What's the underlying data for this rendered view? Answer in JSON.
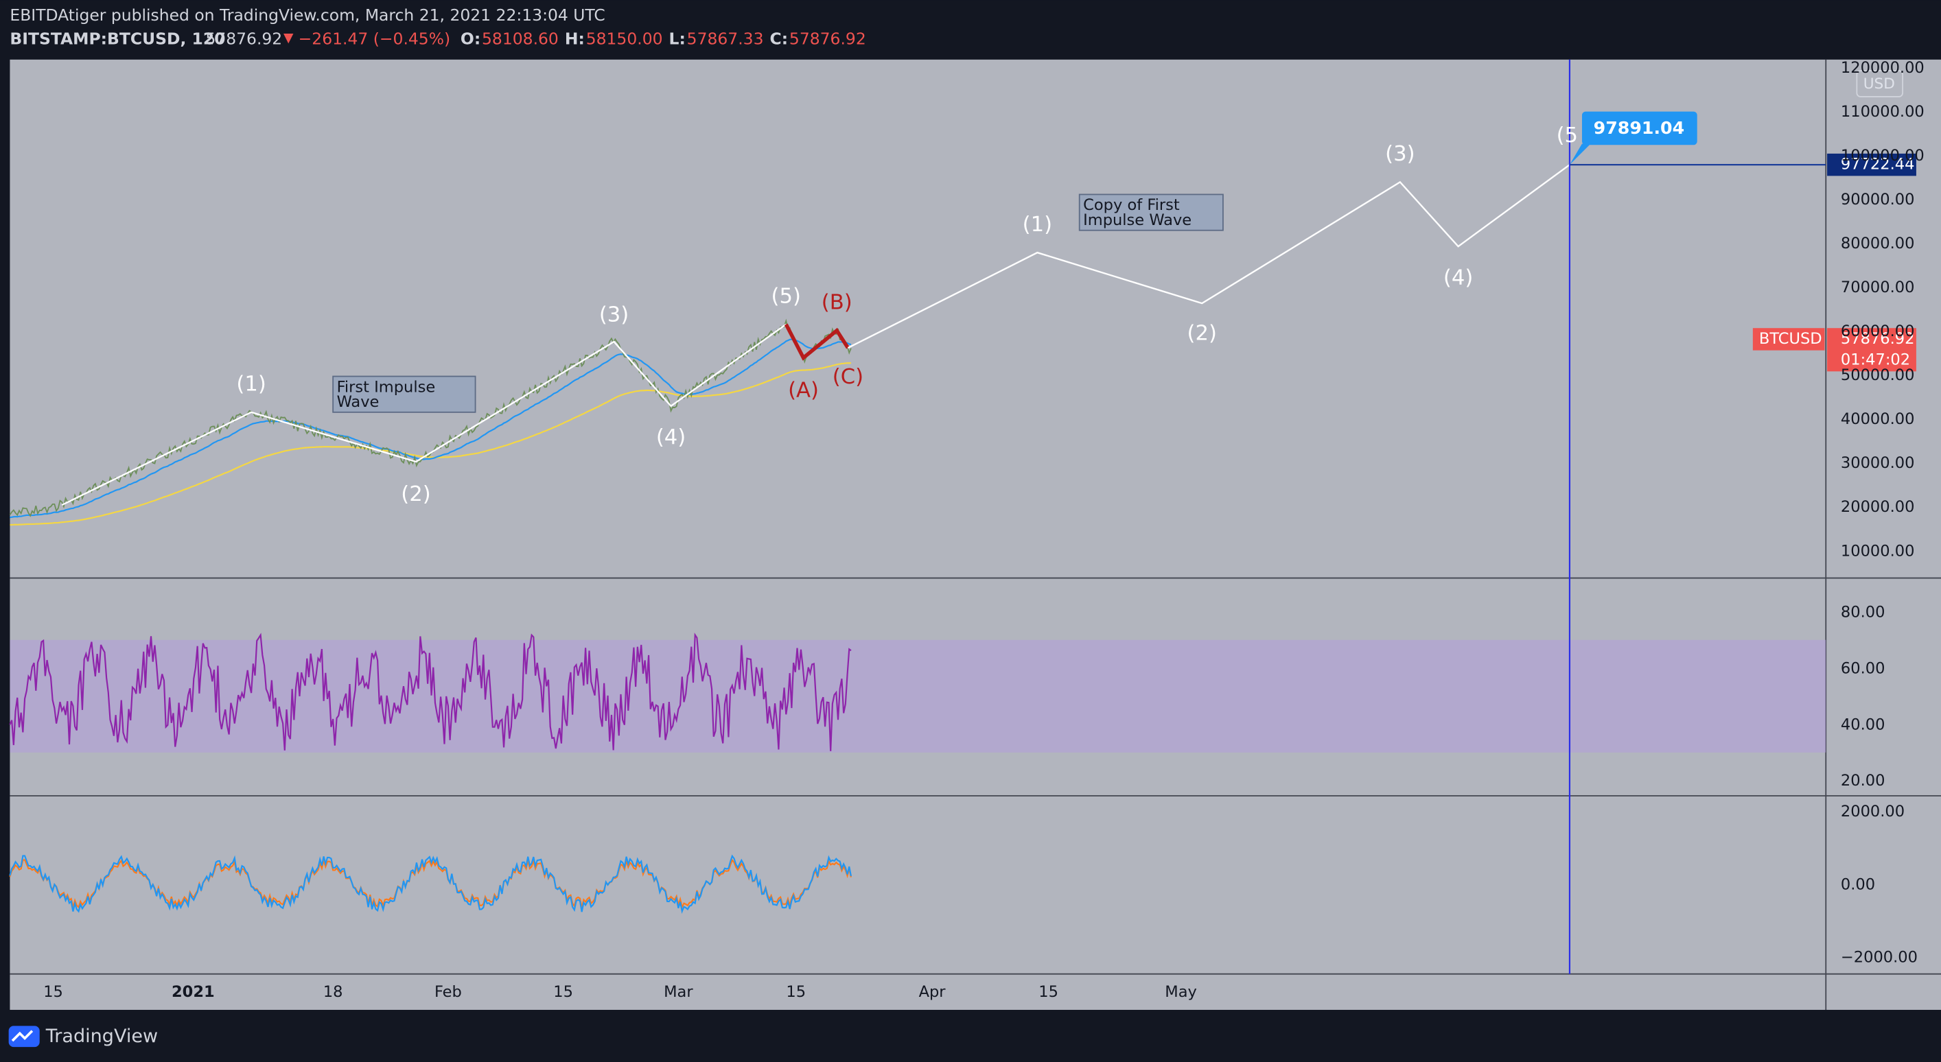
{
  "header": {
    "publisher": "EBITDAtiger published on TradingView.com, March 21, 2021 22:13:04 UTC",
    "symbol": "BITSTAMP:BTCUSD, 120",
    "last": "57876.92",
    "change": "−261.47 (−0.45%)",
    "ohlc": [
      {
        "label": "O:",
        "value": "58108.60"
      },
      {
        "label": "H:",
        "value": "58150.00"
      },
      {
        "label": "L:",
        "value": "57867.33"
      },
      {
        "label": "C:",
        "value": "57876.92"
      }
    ]
  },
  "price_axis": {
    "currency": "USD",
    "ticks": [
      "120000.00",
      "110000.00",
      "100000.00",
      "90000.00",
      "80000.00",
      "70000.00",
      "60000.00",
      "50000.00",
      "40000.00",
      "30000.00",
      "20000.00",
      "10000.00"
    ],
    "symbol_label": "BTCUSD",
    "last_price": "57876.92",
    "countdown": "01:47:02",
    "target_price": "97722.44"
  },
  "rsi_axis": {
    "ticks": [
      "80.00",
      "60.00",
      "40.00",
      "20.00"
    ]
  },
  "macd_axis": {
    "ticks": [
      "2000.00",
      "0.00",
      "−2000.00"
    ]
  },
  "time_axis": {
    "ticks": [
      "15",
      "2021",
      "18",
      "Feb",
      "15",
      "Mar",
      "15",
      "Apr",
      "15",
      "May"
    ]
  },
  "annotations": {
    "waves": [
      "(1)",
      "(2)",
      "(3)",
      "(4)",
      "(5)",
      "(A)",
      "(B)",
      "(C)",
      "(1)",
      "(2)",
      "(3)",
      "(4)",
      "(5"
    ],
    "callout": "97891.04",
    "box1": [
      "First Impulse",
      "Wave"
    ],
    "box2": [
      "Copy of First",
      "Impulse Wave"
    ]
  },
  "footer": {
    "brand": "TradingView"
  }
}
